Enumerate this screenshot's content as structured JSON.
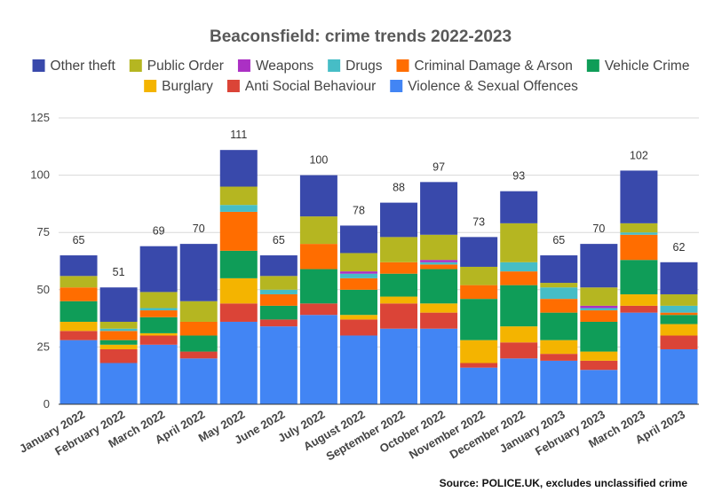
{
  "chart_data": {
    "type": "bar",
    "stacked": true,
    "title": "Beaconsfield: crime trends 2022-2023",
    "xlabel": "",
    "ylabel": "",
    "ylim": [
      0,
      125
    ],
    "yticks": [
      0,
      25,
      50,
      75,
      100,
      125
    ],
    "grid": true,
    "legend_position": "top",
    "categories": [
      "January 2022",
      "February 2022",
      "March 2022",
      "April 2022",
      "May 2022",
      "June 2022",
      "July 2022",
      "August 2022",
      "September 2022",
      "October 2022",
      "November 2022",
      "December 2022",
      "January 2023",
      "February 2023",
      "March 2023",
      "April 2023"
    ],
    "totals": [
      65,
      51,
      69,
      70,
      111,
      65,
      100,
      78,
      88,
      97,
      73,
      93,
      65,
      70,
      102,
      62
    ],
    "series": [
      {
        "name": "Violence & Sexual Offences",
        "color": "#4285f4",
        "values": [
          28,
          18,
          26,
          20,
          36,
          34,
          39,
          30,
          33,
          33,
          16,
          20,
          19,
          15,
          40,
          24
        ]
      },
      {
        "name": "Anti Social Behaviour",
        "color": "#db4437",
        "values": [
          4,
          6,
          4,
          3,
          8,
          3,
          5,
          7,
          11,
          7,
          2,
          7,
          3,
          4,
          3,
          6
        ]
      },
      {
        "name": "Burglary",
        "color": "#f4b400",
        "values": [
          4,
          2,
          1,
          0,
          11,
          0,
          0,
          2,
          3,
          4,
          10,
          7,
          6,
          4,
          5,
          5
        ]
      },
      {
        "name": "Vehicle Crime",
        "color": "#0f9d58",
        "values": [
          9,
          2,
          7,
          7,
          12,
          6,
          15,
          11,
          10,
          15,
          18,
          18,
          12,
          13,
          15,
          4
        ]
      },
      {
        "name": "Criminal Damage & Arson",
        "color": "#ff6d00",
        "values": [
          6,
          4,
          3,
          6,
          17,
          5,
          11,
          5,
          5,
          2,
          6,
          6,
          6,
          5,
          11,
          1
        ]
      },
      {
        "name": "Drugs",
        "color": "#46bdc6",
        "values": [
          0,
          1,
          1,
          0,
          3,
          2,
          0,
          2,
          0,
          1,
          0,
          4,
          5,
          1,
          1,
          3
        ]
      },
      {
        "name": "Weapons",
        "color": "#ab30c4",
        "values": [
          0,
          0,
          0,
          0,
          0,
          0,
          0,
          1,
          0,
          1,
          0,
          0,
          0,
          1,
          0,
          0
        ]
      },
      {
        "name": "Public Order",
        "color": "#b5b621",
        "values": [
          5,
          3,
          7,
          9,
          8,
          6,
          12,
          8,
          11,
          11,
          8,
          17,
          2,
          8,
          4,
          5
        ]
      },
      {
        "name": "Other theft",
        "color": "#3949ab",
        "values": [
          9,
          15,
          20,
          25,
          16,
          9,
          18,
          12,
          15,
          23,
          13,
          14,
          12,
          19,
          23,
          14
        ]
      }
    ],
    "legend_order": [
      "Other theft",
      "Public Order",
      "Weapons",
      "Drugs",
      "Criminal Damage & Arson",
      "Vehicle Crime",
      "Burglary",
      "Anti Social Behaviour",
      "Violence & Sexual Offences"
    ],
    "source": "Source: POLICE.UK, excludes unclassified crime"
  }
}
